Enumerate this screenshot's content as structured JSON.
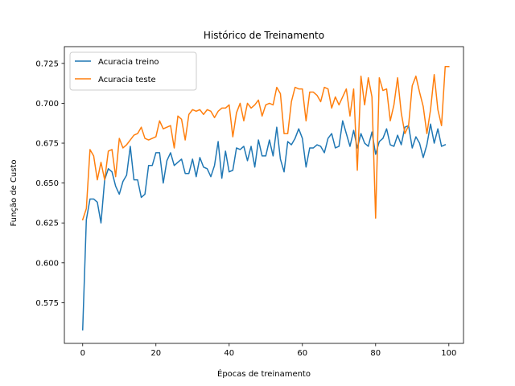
{
  "chart_data": {
    "type": "line",
    "title": "Histórico de Treinamento",
    "xlabel": "Épocas de treinamento",
    "ylabel": "Função de Custo",
    "xlim": [
      -5,
      104
    ],
    "ylim": [
      0.5495,
      0.7355
    ],
    "xticks": [
      0,
      20,
      40,
      60,
      80,
      100
    ],
    "yticks": [
      0.575,
      0.6,
      0.625,
      0.65,
      0.675,
      0.7,
      0.725
    ],
    "ytick_labels": [
      "0.575",
      "0.600",
      "0.625",
      "0.650",
      "0.675",
      "0.700",
      "0.725"
    ],
    "grid": false,
    "legend_position": "upper-left",
    "series": [
      {
        "name": "Acuracia treino",
        "color": "#1f77b4",
        "values": [
          0.558,
          0.627,
          0.64,
          0.64,
          0.638,
          0.625,
          0.652,
          0.659,
          0.657,
          0.648,
          0.643,
          0.651,
          0.655,
          0.673,
          0.652,
          0.652,
          0.641,
          0.643,
          0.661,
          0.661,
          0.669,
          0.669,
          0.65,
          0.664,
          0.669,
          0.661,
          0.663,
          0.665,
          0.656,
          0.656,
          0.665,
          0.654,
          0.666,
          0.66,
          0.659,
          0.654,
          0.661,
          0.676,
          0.653,
          0.67,
          0.657,
          0.658,
          0.672,
          0.671,
          0.673,
          0.664,
          0.673,
          0.66,
          0.677,
          0.667,
          0.667,
          0.677,
          0.667,
          0.685,
          0.665,
          0.657,
          0.676,
          0.674,
          0.678,
          0.684,
          0.678,
          0.66,
          0.672,
          0.672,
          0.674,
          0.673,
          0.669,
          0.678,
          0.681,
          0.672,
          0.673,
          0.689,
          0.681,
          0.673,
          0.683,
          0.672,
          0.681,
          0.675,
          0.673,
          0.682,
          0.668,
          0.676,
          0.678,
          0.684,
          0.674,
          0.673,
          0.68,
          0.674,
          0.685,
          0.686,
          0.672,
          0.679,
          0.675,
          0.666,
          0.674,
          0.687,
          0.675,
          0.684,
          0.673,
          0.674
        ]
      },
      {
        "name": "Acuracia teste",
        "color": "#ff7f0e",
        "values": [
          0.627,
          0.634,
          0.671,
          0.667,
          0.652,
          0.663,
          0.652,
          0.67,
          0.671,
          0.654,
          0.678,
          0.672,
          0.674,
          0.677,
          0.68,
          0.681,
          0.685,
          0.678,
          0.677,
          0.678,
          0.679,
          0.689,
          0.684,
          0.685,
          0.686,
          0.672,
          0.692,
          0.69,
          0.677,
          0.693,
          0.696,
          0.695,
          0.696,
          0.693,
          0.696,
          0.695,
          0.691,
          0.695,
          0.697,
          0.697,
          0.699,
          0.679,
          0.694,
          0.7,
          0.689,
          0.7,
          0.697,
          0.699,
          0.702,
          0.692,
          0.699,
          0.7,
          0.699,
          0.71,
          0.706,
          0.681,
          0.681,
          0.701,
          0.71,
          0.709,
          0.709,
          0.689,
          0.707,
          0.707,
          0.705,
          0.701,
          0.71,
          0.709,
          0.697,
          0.704,
          0.699,
          0.704,
          0.709,
          0.692,
          0.709,
          0.658,
          0.717,
          0.699,
          0.716,
          0.704,
          0.628,
          0.716,
          0.708,
          0.709,
          0.689,
          0.699,
          0.716,
          0.694,
          0.681,
          0.686,
          0.711,
          0.717,
          0.707,
          0.698,
          0.681,
          0.696,
          0.718,
          0.696,
          0.686,
          0.723,
          0.723
        ]
      }
    ]
  }
}
